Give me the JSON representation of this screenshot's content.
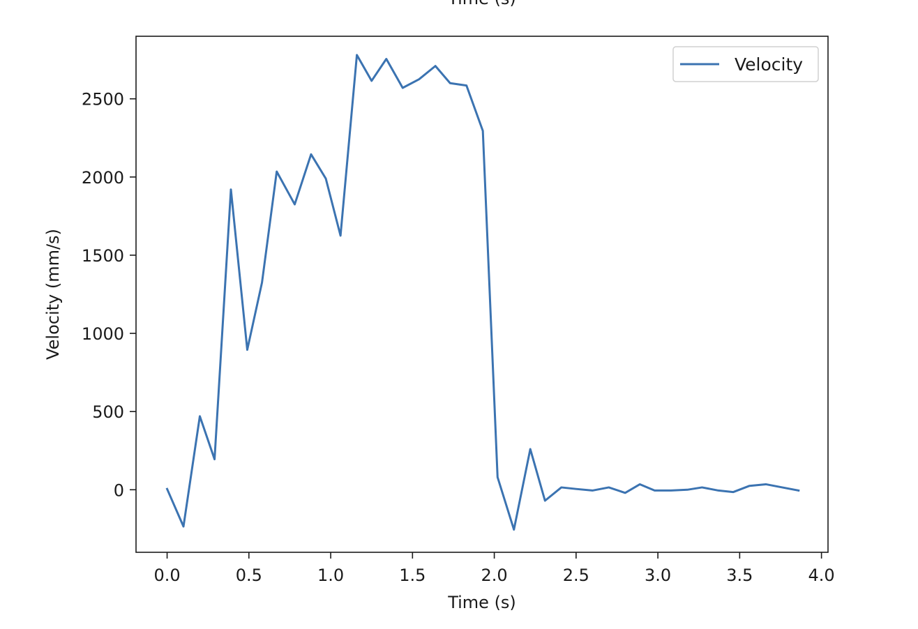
{
  "chart_data": {
    "type": "line",
    "title": "Time (s)",
    "xlabel": "Time (s)",
    "ylabel": "Velocity (mm/s)",
    "xlim": [
      -0.19,
      4.04
    ],
    "ylim": [
      -400,
      2900
    ],
    "xticks": [
      0.0,
      0.5,
      1.0,
      1.5,
      2.0,
      2.5,
      3.0,
      3.5,
      4.0
    ],
    "xtick_labels": [
      "0.0",
      "0.5",
      "1.0",
      "1.5",
      "2.0",
      "2.5",
      "3.0",
      "3.5",
      "4.0"
    ],
    "yticks": [
      0,
      500,
      1000,
      1500,
      2000,
      2500
    ],
    "ytick_labels": [
      "0",
      "500",
      "1000",
      "1500",
      "2000",
      "2500"
    ],
    "grid": false,
    "legend": {
      "location": "upper right",
      "entries": [
        "Velocity"
      ]
    },
    "series": [
      {
        "name": "Velocity",
        "color": "#3b73b1",
        "x": [
          0.0,
          0.1,
          0.2,
          0.29,
          0.39,
          0.49,
          0.58,
          0.67,
          0.78,
          0.88,
          0.97,
          1.06,
          1.16,
          1.25,
          1.34,
          1.44,
          1.54,
          1.64,
          1.73,
          1.83,
          1.93,
          2.02,
          2.12,
          2.22,
          2.31,
          2.41,
          2.5,
          2.6,
          2.7,
          2.8,
          2.89,
          2.98,
          3.08,
          3.18,
          3.27,
          3.37,
          3.46,
          3.56,
          3.66,
          3.76,
          3.86
        ],
        "y": [
          5,
          -235,
          470,
          195,
          1920,
          895,
          1325,
          2035,
          1825,
          2145,
          1990,
          1625,
          2780,
          2615,
          2755,
          2570,
          2625,
          2710,
          2600,
          2585,
          2295,
          80,
          -255,
          260,
          -70,
          15,
          5,
          -5,
          15,
          -20,
          35,
          -5,
          -5,
          0,
          15,
          -5,
          -15,
          25,
          35,
          15,
          -5
        ]
      }
    ]
  }
}
